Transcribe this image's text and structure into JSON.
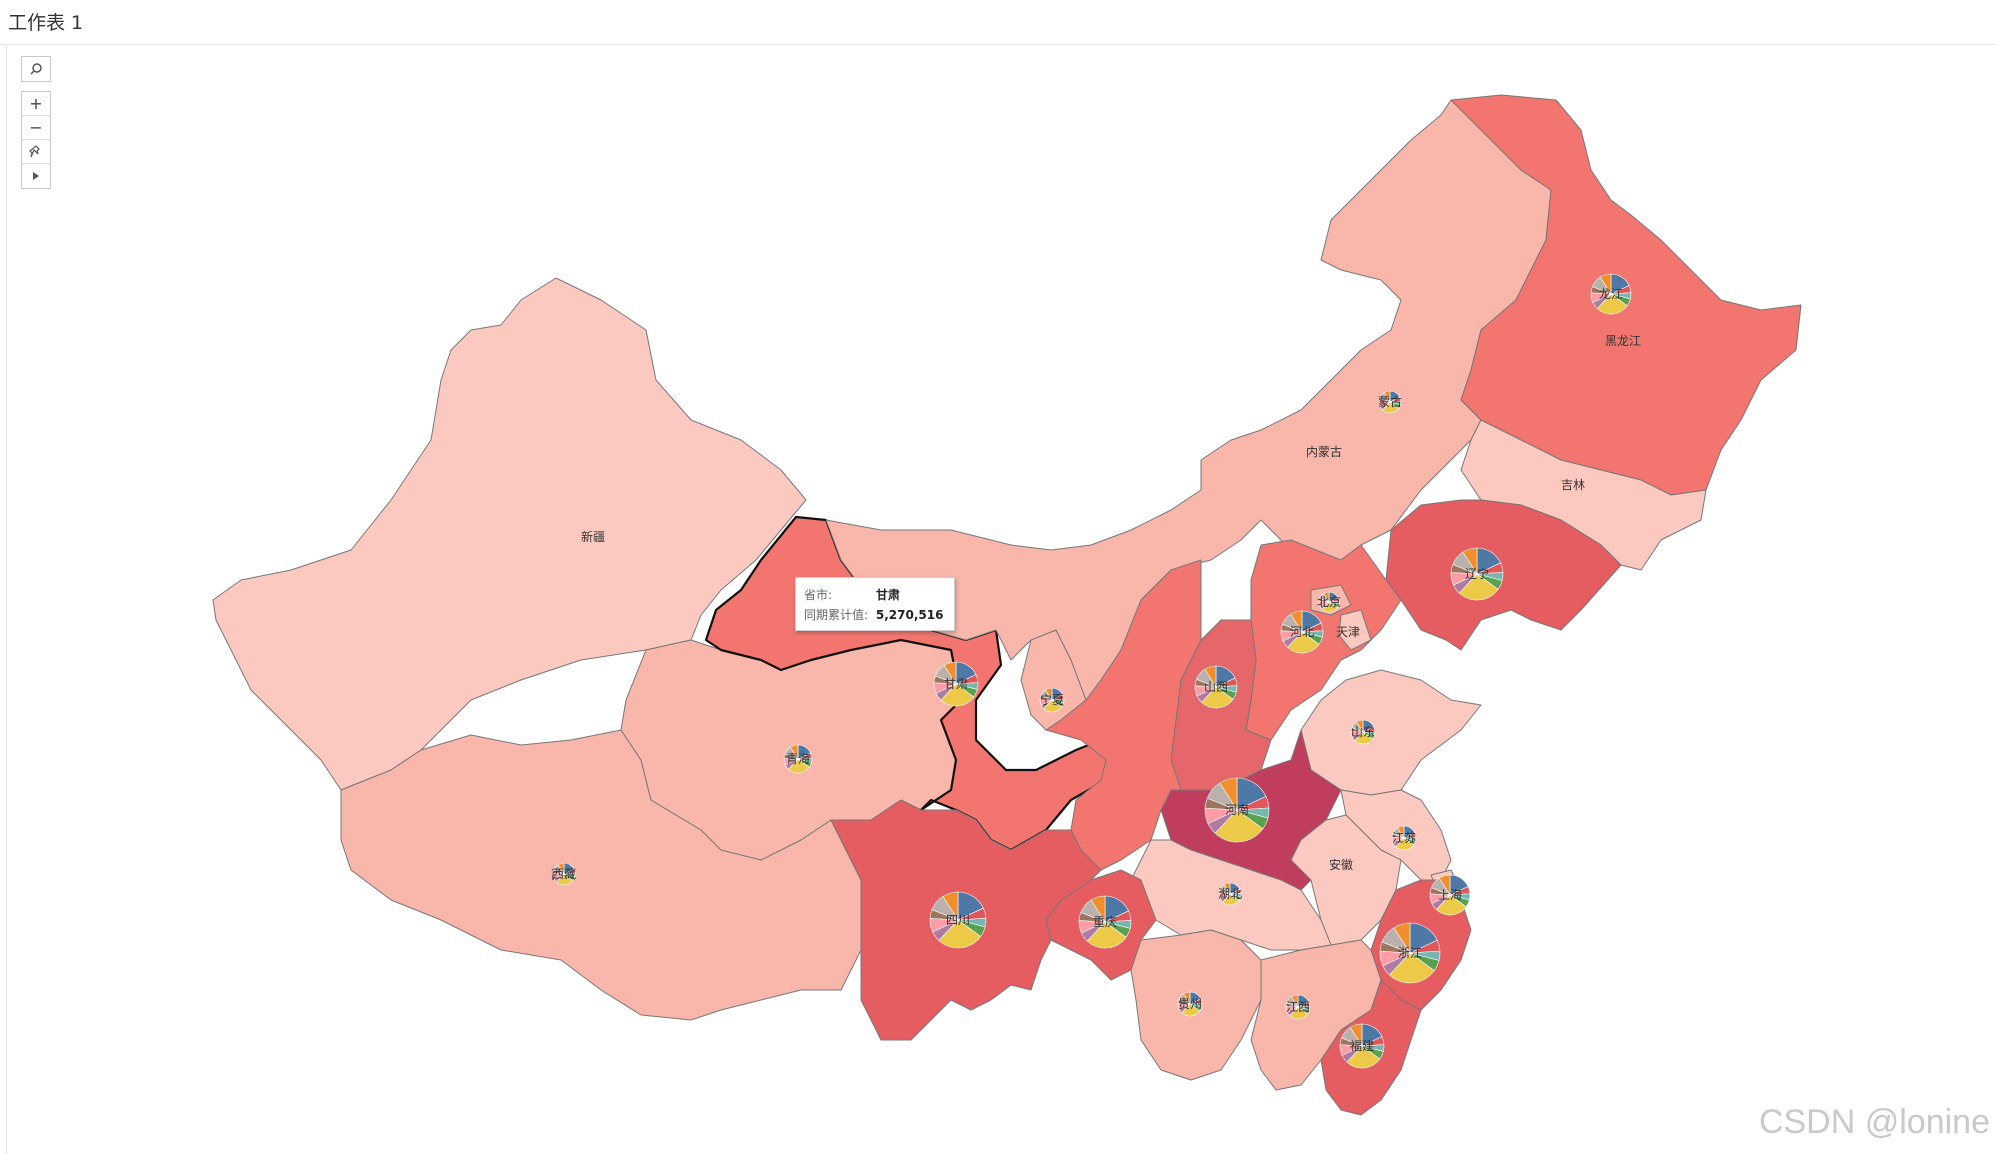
{
  "sheet_title": "工作表 1",
  "toolbar": {
    "search_icon": "search-icon",
    "zoom_in": "+",
    "zoom_out": "−",
    "pin_icon": "pin-icon",
    "expand_icon": "play-icon"
  },
  "tooltip": {
    "province_label": "省市:",
    "province_value": "甘肃",
    "metric_label": "同期累计值:",
    "metric_value": "5,270,516"
  },
  "watermark": "CSDN @lonine",
  "colors": {
    "lightest": "#fcc9c0",
    "light": "#f9b7ab",
    "mid": "#f2766f",
    "dark": "#e55c61",
    "darkest": "#c13d5d"
  },
  "provinces": {
    "xinjiang": "新疆",
    "xizang": "西藏",
    "qinghai": "青海",
    "gansu": "甘肃",
    "ningxia": "宁夏",
    "neimenggu": "内蒙古",
    "neimenggu_pie": "蒙古",
    "heilongjiang": "黑龙江",
    "heilongjiang_pie": "龙江",
    "jilin": "吉林",
    "liaoning": "辽宁",
    "beijing": "北京",
    "tianjin": "天津",
    "hebei": "河北",
    "shanxi": "山西",
    "shandong": "山东",
    "henan": "河南",
    "jiangsu": "江苏",
    "anhui": "安徽",
    "shanghai": "上海",
    "zhejiang": "浙江",
    "hubei": "湖北",
    "sichuan": "四川",
    "chongqing": "重庆",
    "guizhou": "贵州",
    "jiangxi": "江西",
    "fujian": "福建"
  }
}
